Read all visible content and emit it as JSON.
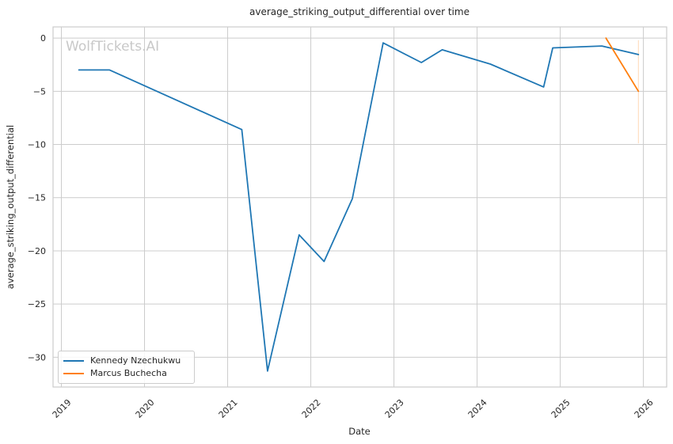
{
  "watermark": {
    "text": "WolfTickets.AI"
  },
  "chart_data": {
    "type": "line",
    "title": "average_striking_output_differential over time",
    "xlabel": "Date",
    "ylabel": "average_striking_output_differential",
    "x_ticks": [
      2019,
      2020,
      2021,
      2022,
      2023,
      2024,
      2025,
      2026
    ],
    "y_ticks": [
      0,
      -5,
      -10,
      -15,
      -20,
      -25,
      -30
    ],
    "xlim": [
      2018.9,
      2026.28
    ],
    "ylim": [
      -32.8,
      1.05
    ],
    "grid": true,
    "legend_position": "lower left",
    "colors": {
      "grid": "#cccccc",
      "spine": "#cccccc",
      "text": "#262626",
      "watermark": "#c8c8c8"
    },
    "series": [
      {
        "name": "Kennedy Nzechukwu",
        "color": "#1f77b4",
        "x": [
          2019.21,
          2019.58,
          2021.17,
          2021.48,
          2021.86,
          2022.16,
          2022.5,
          2022.87,
          2023.33,
          2023.58,
          2024.16,
          2024.8,
          2024.91,
          2025.5,
          2025.94
        ],
        "y": [
          -3.0,
          -3.0,
          -8.6,
          -31.3,
          -18.5,
          -21.0,
          -15.1,
          -0.45,
          -2.3,
          -1.1,
          -2.45,
          -4.6,
          -0.92,
          -0.74,
          -1.55
        ]
      },
      {
        "name": "Marcus Buchecha",
        "color": "#ff7f0e",
        "x": [
          2025.55,
          2025.94
        ],
        "y": [
          0.0,
          -5.0
        ]
      }
    ],
    "error_bar": {
      "x": 2025.94,
      "y_from": -0.2,
      "y_to": -9.9,
      "color": "#ff7f0e",
      "opacity": 0.3
    }
  }
}
